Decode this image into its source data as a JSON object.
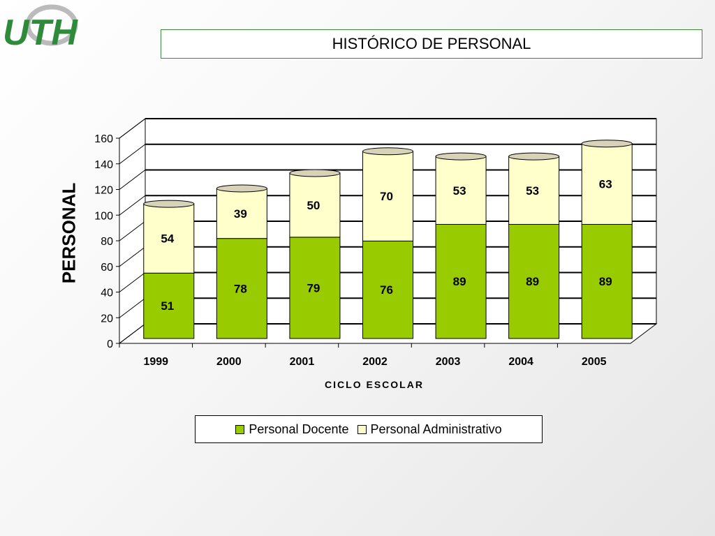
{
  "logo": {
    "text": "UTH"
  },
  "header": {
    "title": "HISTÓRICO DE PERSONAL"
  },
  "chart_data": {
    "type": "bar",
    "stacked": true,
    "three_d": true,
    "categories": [
      "1999",
      "2000",
      "2001",
      "2002",
      "2003",
      "2004",
      "2005"
    ],
    "series": [
      {
        "name": "Personal Docente",
        "values": [
          51,
          78,
          79,
          76,
          89,
          89,
          89
        ],
        "color": "#99cc00"
      },
      {
        "name": "Personal Administrativo",
        "values": [
          54,
          39,
          50,
          70,
          53,
          53,
          63
        ],
        "color": "#ffffcc"
      }
    ],
    "ylabel": "PERSONAL",
    "xlabel": "CICLO ESCOLAR",
    "ylim": [
      0,
      160
    ],
    "yticks": [
      0,
      20,
      40,
      60,
      80,
      100,
      120,
      140,
      160
    ],
    "grid": true,
    "legend_position": "bottom"
  }
}
